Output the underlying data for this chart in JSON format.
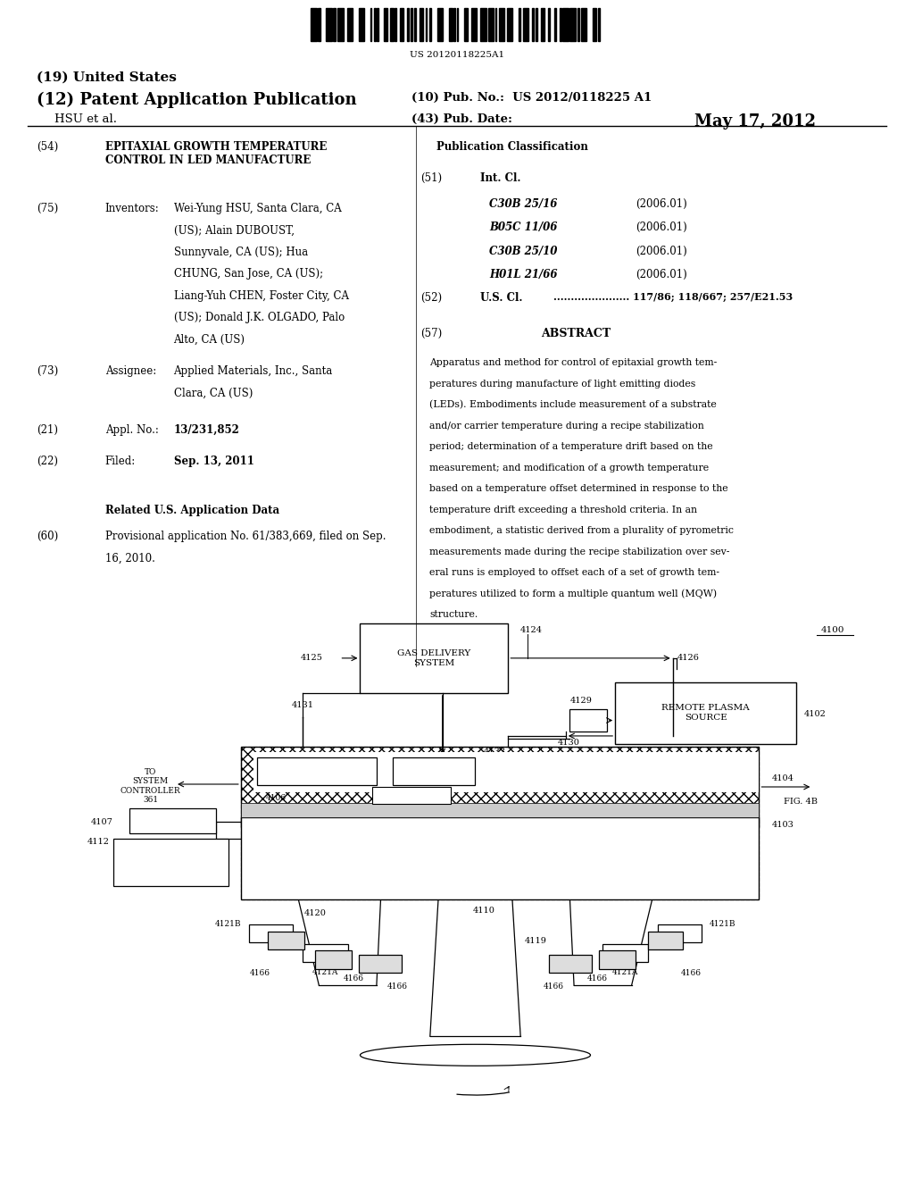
{
  "bg_color": "#ffffff",
  "barcode_text": "US 20120118225A1",
  "header": {
    "country": "(19) United States",
    "type_label": "(12) Patent Application Publication",
    "inventors_label": "HSU et al.",
    "pub_no_label": "(10) Pub. No.:",
    "pub_no_value": "US 2012/0118225 A1",
    "date_label": "(43) Pub. Date:",
    "date_value": "May 17, 2012"
  },
  "left_col": {
    "title_num": "(54)",
    "title_text": "EPITAXIAL GROWTH TEMPERATURE\nCONTROL IN LED MANUFACTURE",
    "inventors_num": "(75)",
    "inventors_label": "Inventors:",
    "inventors_text": "Wei-Yung HSU, Santa Clara, CA\n(US); Alain DUBOUST,\nSunnyvale, CA (US); Hua\nCHUNG, San Jose, CA (US);\nLiang-Yuh CHEN, Foster City, CA\n(US); Donald J.K. OLGADO, Palo\nAlto, CA (US)",
    "assignee_num": "(73)",
    "assignee_label": "Assignee:",
    "assignee_text": "Applied Materials, Inc., Santa\nClara, CA (US)",
    "appl_num": "(21)",
    "appl_label": "Appl. No.:",
    "appl_value": "13/231,852",
    "filed_num": "(22)",
    "filed_label": "Filed:",
    "filed_value": "Sep. 13, 2011",
    "related_header": "Related U.S. Application Data",
    "related_num": "(60)",
    "related_text": "Provisional application No. 61/383,669, filed on Sep.\n16, 2010."
  },
  "right_col": {
    "pub_class_header": "Publication Classification",
    "int_cl_num": "(51)",
    "int_cl_label": "Int. Cl.",
    "classifications": [
      [
        "C30B 25/16",
        "(2006.01)"
      ],
      [
        "B05C 11/06",
        "(2006.01)"
      ],
      [
        "C30B 25/10",
        "(2006.01)"
      ],
      [
        "H01L 21/66",
        "(2006.01)"
      ]
    ],
    "us_cl_num": "(52)",
    "us_cl_label": "U.S. Cl.",
    "us_cl_value": "117/86; 118/667; 257/E21.53",
    "abstract_num": "(57)",
    "abstract_header": "ABSTRACT",
    "abstract_text": "Apparatus and method for control of epitaxial growth tem-\nperatures during manufacture of light emitting diodes\n(LEDs). Embodiments include measurement of a substrate\nand/or carrier temperature during a recipe stabilization\nperiod; determination of a temperature drift based on the\nmeasurement; and modification of a growth temperature\nbased on a temperature offset determined in response to the\ntemperature drift exceeding a threshold criteria. In an\nembodiment, a statistic derived from a plurality of pyrometric\nmeasurements made during the recipe stabilization over sev-\neral runs is employed to offset each of a set of growth tem-\nperatures utilized to form a multiple quantum well (MQW)\nstructure."
  }
}
